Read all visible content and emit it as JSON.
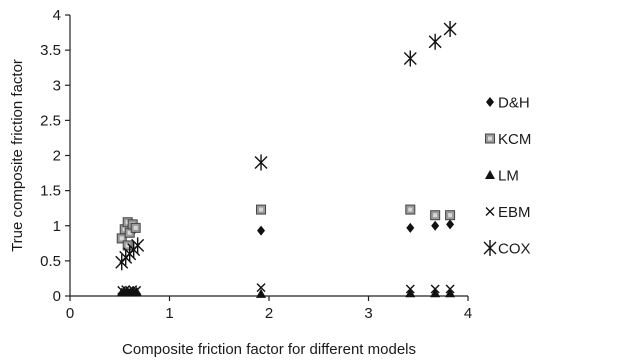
{
  "chart_data": {
    "type": "scatter",
    "title": "",
    "xlabel": "Composite friction factor for different models",
    "ylabel": "True composite friction factor",
    "xlim": [
      0,
      4
    ],
    "ylim": [
      0,
      4
    ],
    "xticks": [
      "0",
      "1",
      "2",
      "3",
      "4"
    ],
    "yticks": [
      "0",
      "0.5",
      "1",
      "1.5",
      "2",
      "2.5",
      "3",
      "3.5",
      "4"
    ],
    "grid": false,
    "legend_position": "right",
    "series": [
      {
        "name": "D&H",
        "marker": "diamond-icon",
        "x": [
          0.55,
          0.57,
          0.6,
          0.62,
          0.64,
          0.66,
          1.92,
          3.42,
          3.67,
          3.82
        ],
        "y": [
          0.86,
          0.95,
          1.03,
          0.9,
          1.0,
          0.97,
          0.93,
          0.97,
          1.0,
          1.02
        ]
      },
      {
        "name": "KCM",
        "marker": "shaded-square-icon",
        "x": [
          0.52,
          0.55,
          0.58,
          0.6,
          0.63,
          0.66,
          0.58,
          1.92,
          3.42,
          3.67,
          3.82
        ],
        "y": [
          0.82,
          0.95,
          1.05,
          0.9,
          1.02,
          0.97,
          0.72,
          1.23,
          1.23,
          1.15,
          1.15
        ]
      },
      {
        "name": "LM",
        "marker": "triangle-icon",
        "x": [
          0.52,
          0.55,
          0.58,
          0.61,
          0.64,
          0.67,
          1.92,
          3.42,
          3.67,
          3.82
        ],
        "y": [
          0.05,
          0.06,
          0.05,
          0.06,
          0.05,
          0.06,
          0.03,
          0.04,
          0.04,
          0.04
        ]
      },
      {
        "name": "EBM",
        "marker": "x-icon",
        "x": [
          0.52,
          0.56,
          0.6,
          0.63,
          0.67,
          1.92,
          3.42,
          3.67,
          3.82
        ],
        "y": [
          0.08,
          0.09,
          0.08,
          0.09,
          0.08,
          0.12,
          0.1,
          0.1,
          0.1
        ]
      },
      {
        "name": "COX",
        "marker": "asterisk-icon",
        "x": [
          0.52,
          0.56,
          0.6,
          0.64,
          0.68,
          1.92,
          3.42,
          3.67,
          3.82
        ],
        "y": [
          0.48,
          0.55,
          0.6,
          0.66,
          0.72,
          1.9,
          3.38,
          3.62,
          3.8
        ]
      }
    ]
  }
}
